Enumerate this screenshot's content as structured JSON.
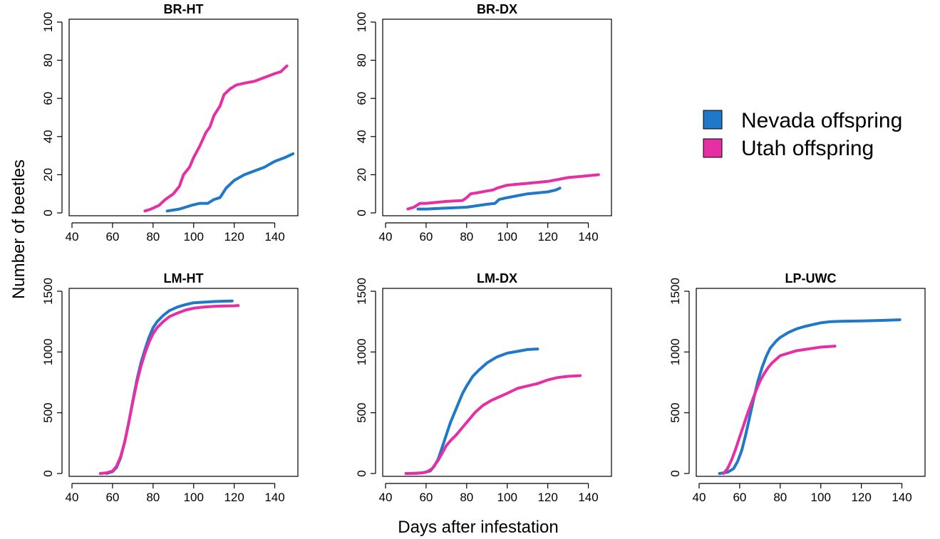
{
  "figure": {
    "ylabel": "Number of beetles",
    "xlabel": "Days after infestation"
  },
  "legend": {
    "entries": [
      {
        "label": "Nevada offspring",
        "color": "#1F78C8"
      },
      {
        "label": "Utah offspring",
        "color": "#E62FA3"
      }
    ]
  },
  "chart_data": [
    {
      "type": "line",
      "title": "BR-HT",
      "xlabel": "",
      "ylabel": "",
      "xlim": [
        40,
        150
      ],
      "ylim": [
        0,
        100
      ],
      "xticks": [
        40,
        60,
        80,
        100,
        120,
        140
      ],
      "yticks": [
        0,
        20,
        40,
        60,
        80,
        100
      ],
      "series": [
        {
          "name": "Nevada offspring",
          "color": "#1F78C8",
          "x": [
            87,
            93,
            96,
            99,
            103,
            107,
            110,
            113,
            116,
            120,
            125,
            130,
            135,
            140,
            145,
            149
          ],
          "y": [
            1,
            2,
            3,
            4,
            5,
            5,
            7,
            8,
            13,
            17,
            20,
            22,
            24,
            27,
            29,
            31
          ]
        },
        {
          "name": "Utah offspring",
          "color": "#E62FA3",
          "x": [
            76,
            79,
            83,
            86,
            90,
            93,
            95,
            98,
            100,
            103,
            106,
            108,
            110,
            113,
            115,
            118,
            121,
            125,
            130,
            135,
            140,
            143,
            146
          ],
          "y": [
            1,
            2,
            4,
            7,
            10,
            14,
            20,
            24,
            29,
            35,
            42,
            45,
            51,
            56,
            62,
            65,
            67,
            68,
            69,
            71,
            73,
            74,
            77
          ]
        }
      ]
    },
    {
      "type": "line",
      "title": "BR-DX",
      "xlabel": "",
      "ylabel": "",
      "xlim": [
        40,
        150
      ],
      "ylim": [
        0,
        100
      ],
      "xticks": [
        40,
        60,
        80,
        100,
        120,
        140
      ],
      "yticks": [
        0,
        20,
        40,
        60,
        80,
        100
      ],
      "series": [
        {
          "name": "Nevada offspring",
          "color": "#1F78C8",
          "x": [
            56,
            60,
            70,
            80,
            90,
            94,
            96,
            100,
            105,
            110,
            115,
            120,
            124,
            126
          ],
          "y": [
            2,
            2,
            2.5,
            3,
            4.5,
            5,
            7,
            8,
            9,
            10,
            10.5,
            11,
            12,
            13
          ]
        },
        {
          "name": "Utah offspring",
          "color": "#E62FA3",
          "x": [
            51,
            54,
            57,
            60,
            70,
            78,
            80,
            82,
            85,
            90,
            93,
            95,
            100,
            105,
            110,
            115,
            120,
            125,
            130,
            135,
            140,
            145
          ],
          "y": [
            2,
            3,
            5,
            5,
            6,
            6.5,
            8,
            10,
            10.5,
            11.5,
            12,
            13,
            14.5,
            15,
            15.5,
            16,
            16.5,
            17.5,
            18.5,
            19,
            19.5,
            20
          ]
        }
      ]
    },
    {
      "type": "line",
      "title": "LM-HT",
      "xlabel": "",
      "ylabel": "",
      "xlim": [
        40,
        150
      ],
      "ylim": [
        0,
        1500
      ],
      "xticks": [
        40,
        60,
        80,
        100,
        120,
        140
      ],
      "yticks": [
        0,
        500,
        1000,
        1500
      ],
      "series": [
        {
          "name": "Nevada offspring",
          "color": "#1F78C8",
          "x": [
            57,
            60,
            62,
            64,
            66,
            68,
            70,
            72,
            74,
            76,
            78,
            80,
            82,
            85,
            88,
            92,
            96,
            100,
            105,
            110,
            115,
            119
          ],
          "y": [
            0,
            15,
            50,
            130,
            260,
            420,
            600,
            770,
            910,
            1020,
            1120,
            1200,
            1250,
            1300,
            1340,
            1370,
            1390,
            1405,
            1410,
            1415,
            1418,
            1420
          ]
        },
        {
          "name": "Utah offspring",
          "color": "#E62FA3",
          "x": [
            54,
            57,
            60,
            62,
            64,
            66,
            68,
            70,
            72,
            74,
            76,
            78,
            80,
            82,
            85,
            88,
            92,
            96,
            100,
            105,
            110,
            115,
            120,
            122
          ],
          "y": [
            0,
            5,
            20,
            60,
            140,
            260,
            420,
            590,
            750,
            880,
            990,
            1080,
            1150,
            1200,
            1250,
            1290,
            1320,
            1345,
            1360,
            1370,
            1375,
            1378,
            1380,
            1382
          ]
        }
      ]
    },
    {
      "type": "line",
      "title": "LM-DX",
      "xlabel": "",
      "ylabel": "",
      "xlim": [
        40,
        150
      ],
      "ylim": [
        0,
        1500
      ],
      "xticks": [
        40,
        60,
        80,
        100,
        120,
        140
      ],
      "yticks": [
        0,
        500,
        1000,
        1500
      ],
      "series": [
        {
          "name": "Nevada offspring",
          "color": "#1F78C8",
          "x": [
            52,
            58,
            62,
            64,
            66,
            68,
            70,
            72,
            74,
            76,
            78,
            80,
            83,
            86,
            90,
            95,
            100,
            105,
            110,
            115
          ],
          "y": [
            0,
            5,
            20,
            60,
            120,
            220,
            320,
            420,
            500,
            580,
            660,
            720,
            800,
            850,
            910,
            960,
            990,
            1005,
            1020,
            1025
          ]
        },
        {
          "name": "Utah offspring",
          "color": "#E62FA3",
          "x": [
            50,
            56,
            60,
            63,
            66,
            68,
            70,
            72,
            75,
            78,
            81,
            84,
            88,
            92,
            96,
            100,
            105,
            110,
            115,
            120,
            125,
            130,
            136
          ],
          "y": [
            0,
            2,
            10,
            40,
            110,
            170,
            230,
            270,
            320,
            380,
            440,
            500,
            560,
            600,
            630,
            660,
            700,
            720,
            740,
            770,
            790,
            800,
            805
          ]
        }
      ]
    },
    {
      "type": "line",
      "title": "LP-UWC",
      "xlabel": "",
      "ylabel": "",
      "xlim": [
        40,
        150
      ],
      "ylim": [
        0,
        1500
      ],
      "xticks": [
        40,
        60,
        80,
        100,
        120,
        140
      ],
      "yticks": [
        0,
        500,
        1000,
        1500
      ],
      "series": [
        {
          "name": "Nevada offspring",
          "color": "#1F78C8",
          "x": [
            50,
            54,
            57,
            59,
            61,
            63,
            65,
            67,
            69,
            71,
            73,
            75,
            78,
            80,
            84,
            88,
            92,
            96,
            100,
            105,
            110,
            120,
            130,
            139
          ],
          "y": [
            0,
            10,
            40,
            100,
            190,
            320,
            470,
            620,
            760,
            870,
            960,
            1030,
            1090,
            1120,
            1160,
            1190,
            1210,
            1225,
            1240,
            1250,
            1252,
            1255,
            1260,
            1265
          ]
        },
        {
          "name": "Utah offspring",
          "color": "#E62FA3",
          "x": [
            52,
            54,
            56,
            58,
            60,
            62,
            64,
            66,
            68,
            70,
            72,
            74,
            76,
            78,
            80,
            84,
            88,
            92,
            96,
            100,
            104,
            107
          ],
          "y": [
            0,
            40,
            110,
            200,
            300,
            400,
            500,
            590,
            680,
            760,
            820,
            870,
            910,
            940,
            970,
            990,
            1010,
            1020,
            1030,
            1040,
            1045,
            1048
          ]
        }
      ]
    }
  ]
}
